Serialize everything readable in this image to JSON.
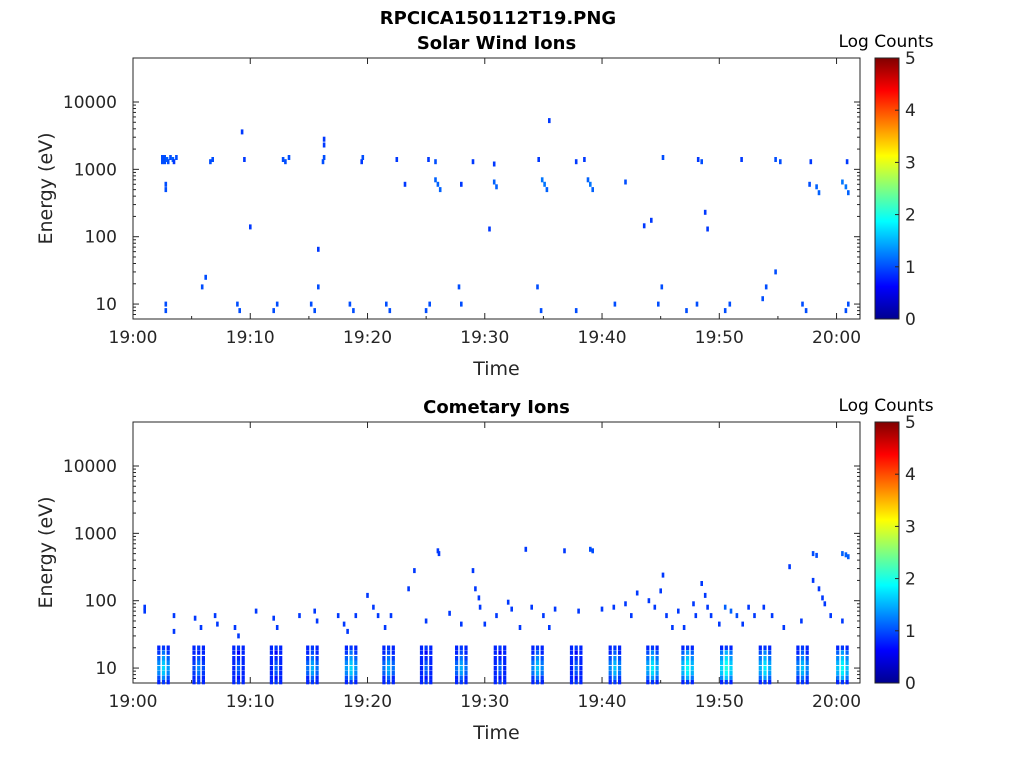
{
  "figure": {
    "suptitle": "RPCICA150112T19.PNG"
  },
  "chart_data": [
    {
      "type": "heatmap",
      "title": "Solar Wind Ions",
      "xlabel": "Time",
      "ylabel": "Energy (eV)",
      "x_ticks": [
        "19:00",
        "19:10",
        "19:20",
        "19:30",
        "19:40",
        "19:50",
        "20:00"
      ],
      "x_range_minutes": [
        0,
        62
      ],
      "y_scale": "log",
      "y_ticks": [
        "10",
        "100",
        "1000",
        "10000"
      ],
      "y_range": [
        6,
        45000
      ],
      "colorbar": {
        "label": "Log Counts",
        "ticks": [
          "0",
          "1",
          "2",
          "3",
          "4",
          "5"
        ],
        "range": [
          0,
          5
        ],
        "colormap": "jet"
      },
      "cells": [
        [
          2.5,
          1300,
          1.0
        ],
        [
          2.5,
          1500,
          1.0
        ],
        [
          2.7,
          1300,
          1.0
        ],
        [
          2.7,
          1500,
          1.0
        ],
        [
          2.9,
          1400,
          1.1
        ],
        [
          3.0,
          1300,
          1.0
        ],
        [
          3.2,
          1500,
          1.0
        ],
        [
          3.4,
          1400,
          1.1
        ],
        [
          3.5,
          1300,
          0.9
        ],
        [
          3.7,
          1500,
          1.0
        ],
        [
          2.8,
          600,
          1.0
        ],
        [
          2.8,
          500,
          1.0
        ],
        [
          6.8,
          1400,
          1.0
        ],
        [
          6.6,
          1300,
          1.0
        ],
        [
          9.5,
          1400,
          0.9
        ],
        [
          12.8,
          1400,
          1.0
        ],
        [
          13.0,
          1300,
          1.0
        ],
        [
          13.3,
          1500,
          1.0
        ],
        [
          16.2,
          1300,
          1.0
        ],
        [
          16.3,
          1500,
          1.0
        ],
        [
          19.5,
          1300,
          0.9
        ],
        [
          19.6,
          1500,
          1.0
        ],
        [
          22.5,
          1400,
          0.9
        ],
        [
          25.2,
          1400,
          0.9
        ],
        [
          25.8,
          1300,
          1.0
        ],
        [
          29.0,
          1300,
          0.9
        ],
        [
          30.8,
          1200,
          0.9
        ],
        [
          34.6,
          1400,
          0.9
        ],
        [
          37.8,
          1300,
          0.9
        ],
        [
          38.5,
          1400,
          0.9
        ],
        [
          45.2,
          1500,
          1.0
        ],
        [
          48.2,
          1400,
          0.9
        ],
        [
          48.5,
          1300,
          1.0
        ],
        [
          51.9,
          1400,
          0.9
        ],
        [
          54.8,
          1400,
          1.0
        ],
        [
          55.2,
          1300,
          1.0
        ],
        [
          57.8,
          1300,
          0.9
        ],
        [
          60.9,
          1300,
          0.9
        ],
        [
          23.2,
          600,
          0.9
        ],
        [
          25.8,
          700,
          1.1
        ],
        [
          26.0,
          600,
          1.1
        ],
        [
          26.2,
          500,
          1.1
        ],
        [
          28.0,
          600,
          0.9
        ],
        [
          30.8,
          650,
          1.1
        ],
        [
          31.0,
          550,
          1.1
        ],
        [
          34.9,
          700,
          1.2
        ],
        [
          35.1,
          600,
          1.2
        ],
        [
          35.3,
          500,
          1.1
        ],
        [
          38.8,
          700,
          1.1
        ],
        [
          39.0,
          600,
          1.2
        ],
        [
          39.2,
          500,
          1.1
        ],
        [
          42.0,
          650,
          1.0
        ],
        [
          57.7,
          600,
          1.0
        ],
        [
          58.3,
          550,
          1.1
        ],
        [
          58.5,
          450,
          1.1
        ],
        [
          60.5,
          650,
          1.2
        ],
        [
          60.8,
          550,
          1.2
        ],
        [
          61.0,
          450,
          1.1
        ],
        [
          9.3,
          3600,
          0.9
        ],
        [
          16.3,
          2800,
          0.9
        ],
        [
          16.3,
          2300,
          0.9
        ],
        [
          35.5,
          5300,
          0.9
        ],
        [
          10.0,
          140,
          0.9
        ],
        [
          15.8,
          65,
          0.9
        ],
        [
          30.4,
          130,
          0.9
        ],
        [
          43.6,
          145,
          0.9
        ],
        [
          44.2,
          175,
          0.9
        ],
        [
          48.8,
          230,
          0.9
        ],
        [
          49.0,
          130,
          0.9
        ],
        [
          2.8,
          8,
          1.0
        ],
        [
          2.8,
          10,
          1.0
        ],
        [
          5.9,
          18,
          1.0
        ],
        [
          6.2,
          25,
          1.0
        ],
        [
          8.9,
          10,
          1.0
        ],
        [
          9.1,
          8,
          1.0
        ],
        [
          12.0,
          8,
          1.0
        ],
        [
          12.3,
          10,
          1.0
        ],
        [
          15.2,
          10,
          1.0
        ],
        [
          15.5,
          8,
          1.0
        ],
        [
          15.8,
          18,
          1.0
        ],
        [
          18.5,
          10,
          1.0
        ],
        [
          18.8,
          8,
          1.0
        ],
        [
          21.6,
          10,
          1.0
        ],
        [
          21.9,
          8,
          1.0
        ],
        [
          25.0,
          8,
          1.0
        ],
        [
          25.3,
          10,
          1.0
        ],
        [
          27.8,
          18,
          1.0
        ],
        [
          28.0,
          10,
          1.0
        ],
        [
          34.5,
          18,
          1.0
        ],
        [
          34.8,
          8,
          1.0
        ],
        [
          37.8,
          8,
          1.0
        ],
        [
          41.1,
          10,
          1.0
        ],
        [
          44.8,
          10,
          1.0
        ],
        [
          45.1,
          18,
          1.0
        ],
        [
          47.2,
          8,
          1.0
        ],
        [
          48.1,
          10,
          1.0
        ],
        [
          50.5,
          8,
          1.0
        ],
        [
          50.9,
          10,
          1.0
        ],
        [
          53.7,
          12,
          1.0
        ],
        [
          54.0,
          18,
          1.0
        ],
        [
          54.8,
          30,
          1.0
        ],
        [
          57.1,
          10,
          1.0
        ],
        [
          57.4,
          8,
          1.0
        ],
        [
          60.8,
          8,
          1.0
        ],
        [
          61.0,
          10,
          1.0
        ]
      ]
    },
    {
      "type": "heatmap",
      "title": "Cometary Ions",
      "xlabel": "Time",
      "ylabel": "Energy (eV)",
      "x_ticks": [
        "19:00",
        "19:10",
        "19:20",
        "19:30",
        "19:40",
        "19:50",
        "20:00"
      ],
      "x_range_minutes": [
        0,
        62
      ],
      "y_scale": "log",
      "y_ticks": [
        "10",
        "100",
        "1000",
        "10000"
      ],
      "y_range": [
        6,
        45000
      ],
      "colorbar": {
        "label": "Log Counts",
        "ticks": [
          "0",
          "1",
          "2",
          "3",
          "4",
          "5"
        ],
        "range": [
          0,
          5
        ],
        "colormap": "jet"
      },
      "stripes": [
        2.6,
        5.6,
        9.0,
        12.2,
        15.3,
        18.6,
        21.8,
        25.0,
        28.0,
        31.3,
        34.5,
        37.8,
        41.1,
        44.3,
        47.3,
        50.6,
        53.9,
        57.1,
        60.5
      ],
      "stripe_intensity": [
        1.6,
        1.2,
        1.0,
        1.0,
        1.4,
        1.6,
        1.4,
        1.0,
        1.4,
        1.0,
        1.5,
        1.0,
        1.5,
        1.7,
        1.8,
        1.9,
        1.7,
        1.5,
        1.8
      ],
      "cells": [
        [
          1.0,
          80,
          0.9
        ],
        [
          1.0,
          70,
          0.9
        ],
        [
          3.5,
          60,
          0.9
        ],
        [
          3.5,
          35,
          0.9
        ],
        [
          5.3,
          55,
          0.9
        ],
        [
          5.8,
          40,
          0.9
        ],
        [
          7.0,
          60,
          0.9
        ],
        [
          7.2,
          45,
          0.9
        ],
        [
          8.7,
          40,
          0.9
        ],
        [
          9.0,
          30,
          0.9
        ],
        [
          10.5,
          70,
          0.9
        ],
        [
          12.0,
          55,
          0.9
        ],
        [
          12.3,
          40,
          0.9
        ],
        [
          14.2,
          60,
          0.9
        ],
        [
          15.5,
          70,
          0.9
        ],
        [
          15.7,
          50,
          0.9
        ],
        [
          17.5,
          60,
          0.9
        ],
        [
          18.0,
          45,
          0.9
        ],
        [
          18.3,
          35,
          0.9
        ],
        [
          19.0,
          60,
          0.9
        ],
        [
          20.0,
          120,
          0.9
        ],
        [
          20.5,
          80,
          0.9
        ],
        [
          20.9,
          60,
          0.9
        ],
        [
          21.5,
          40,
          0.9
        ],
        [
          22.0,
          60,
          0.9
        ],
        [
          23.5,
          150,
          0.9
        ],
        [
          24.0,
          280,
          0.9
        ],
        [
          25.0,
          50,
          0.9
        ],
        [
          26.0,
          550,
          0.9
        ],
        [
          26.1,
          500,
          0.9
        ],
        [
          27.0,
          65,
          0.9
        ],
        [
          28.0,
          45,
          0.9
        ],
        [
          29.0,
          280,
          0.9
        ],
        [
          29.2,
          150,
          0.9
        ],
        [
          29.5,
          110,
          0.9
        ],
        [
          29.6,
          80,
          0.9
        ],
        [
          30.0,
          45,
          0.9
        ],
        [
          31.0,
          60,
          0.9
        ],
        [
          32.0,
          95,
          0.9
        ],
        [
          32.3,
          75,
          0.9
        ],
        [
          33.0,
          40,
          0.9
        ],
        [
          33.5,
          580,
          0.9
        ],
        [
          34.0,
          80,
          0.9
        ],
        [
          35.0,
          60,
          0.9
        ],
        [
          35.5,
          40,
          0.9
        ],
        [
          36.0,
          75,
          0.9
        ],
        [
          36.8,
          550,
          0.9
        ],
        [
          38.0,
          70,
          0.9
        ],
        [
          39.0,
          580,
          1.0
        ],
        [
          39.2,
          550,
          1.0
        ],
        [
          40.0,
          75,
          0.9
        ],
        [
          41.0,
          80,
          0.9
        ],
        [
          42.0,
          90,
          0.9
        ],
        [
          42.5,
          60,
          0.9
        ],
        [
          43.0,
          130,
          0.9
        ],
        [
          44.0,
          100,
          0.9
        ],
        [
          44.5,
          80,
          0.9
        ],
        [
          45.0,
          140,
          0.9
        ],
        [
          45.2,
          240,
          0.9
        ],
        [
          45.5,
          60,
          0.9
        ],
        [
          46.0,
          40,
          0.9
        ],
        [
          46.5,
          70,
          0.9
        ],
        [
          47.0,
          40,
          0.9
        ],
        [
          47.8,
          90,
          0.9
        ],
        [
          48.0,
          60,
          0.9
        ],
        [
          48.5,
          180,
          0.9
        ],
        [
          48.8,
          120,
          0.9
        ],
        [
          49.0,
          80,
          0.9
        ],
        [
          49.3,
          60,
          0.9
        ],
        [
          50.0,
          45,
          0.9
        ],
        [
          50.5,
          80,
          1.1
        ],
        [
          51.0,
          70,
          1.1
        ],
        [
          51.5,
          60,
          1.0
        ],
        [
          52.0,
          45,
          0.9
        ],
        [
          52.5,
          80,
          0.9
        ],
        [
          53.0,
          60,
          0.9
        ],
        [
          53.8,
          80,
          0.9
        ],
        [
          54.5,
          60,
          0.9
        ],
        [
          55.5,
          40,
          0.9
        ],
        [
          56.0,
          320,
          0.9
        ],
        [
          57.0,
          50,
          0.9
        ],
        [
          58.0,
          500,
          1.0
        ],
        [
          58.3,
          470,
          1.0
        ],
        [
          58.0,
          200,
          0.9
        ],
        [
          58.5,
          150,
          0.9
        ],
        [
          58.8,
          110,
          0.9
        ],
        [
          59.0,
          90,
          0.9
        ],
        [
          59.5,
          60,
          0.9
        ],
        [
          60.5,
          500,
          1.1
        ],
        [
          60.8,
          480,
          1.1
        ],
        [
          61.0,
          450,
          1.1
        ],
        [
          60.5,
          50,
          0.9
        ]
      ]
    }
  ]
}
